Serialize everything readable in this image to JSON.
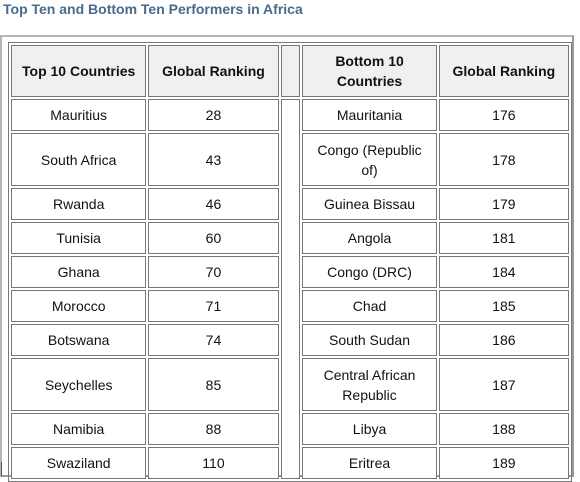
{
  "title": "Top Ten and Bottom Ten Performers in Africa",
  "headers": {
    "top_countries": "Top 10 Countries",
    "top_ranking": "Global Ranking",
    "bottom_countries": "Bottom 10 Countries",
    "bottom_ranking": "Global Ranking"
  },
  "rows": [
    {
      "top_country": "Mauritius",
      "top_rank": "28",
      "bottom_country": "Mauritania",
      "bottom_rank": "176"
    },
    {
      "top_country": "South Africa",
      "top_rank": "43",
      "bottom_country": "Congo (Republic of)",
      "bottom_rank": "178"
    },
    {
      "top_country": "Rwanda",
      "top_rank": "46",
      "bottom_country": "Guinea Bissau",
      "bottom_rank": "179"
    },
    {
      "top_country": "Tunisia",
      "top_rank": "60",
      "bottom_country": "Angola",
      "bottom_rank": "181"
    },
    {
      "top_country": "Ghana",
      "top_rank": "70",
      "bottom_country": "Congo (DRC)",
      "bottom_rank": "184"
    },
    {
      "top_country": "Morocco",
      "top_rank": "71",
      "bottom_country": "Chad",
      "bottom_rank": "185"
    },
    {
      "top_country": "Botswana",
      "top_rank": "74",
      "bottom_country": "South Sudan",
      "bottom_rank": "186"
    },
    {
      "top_country": "Seychelles",
      "top_rank": "85",
      "bottom_country": "Central African Republic",
      "bottom_rank": "187"
    },
    {
      "top_country": "Namibia",
      "top_rank": "88",
      "bottom_country": "Libya",
      "bottom_rank": "188"
    },
    {
      "top_country": "Swaziland",
      "top_rank": "110",
      "bottom_country": "Eritrea",
      "bottom_rank": "189"
    }
  ]
}
